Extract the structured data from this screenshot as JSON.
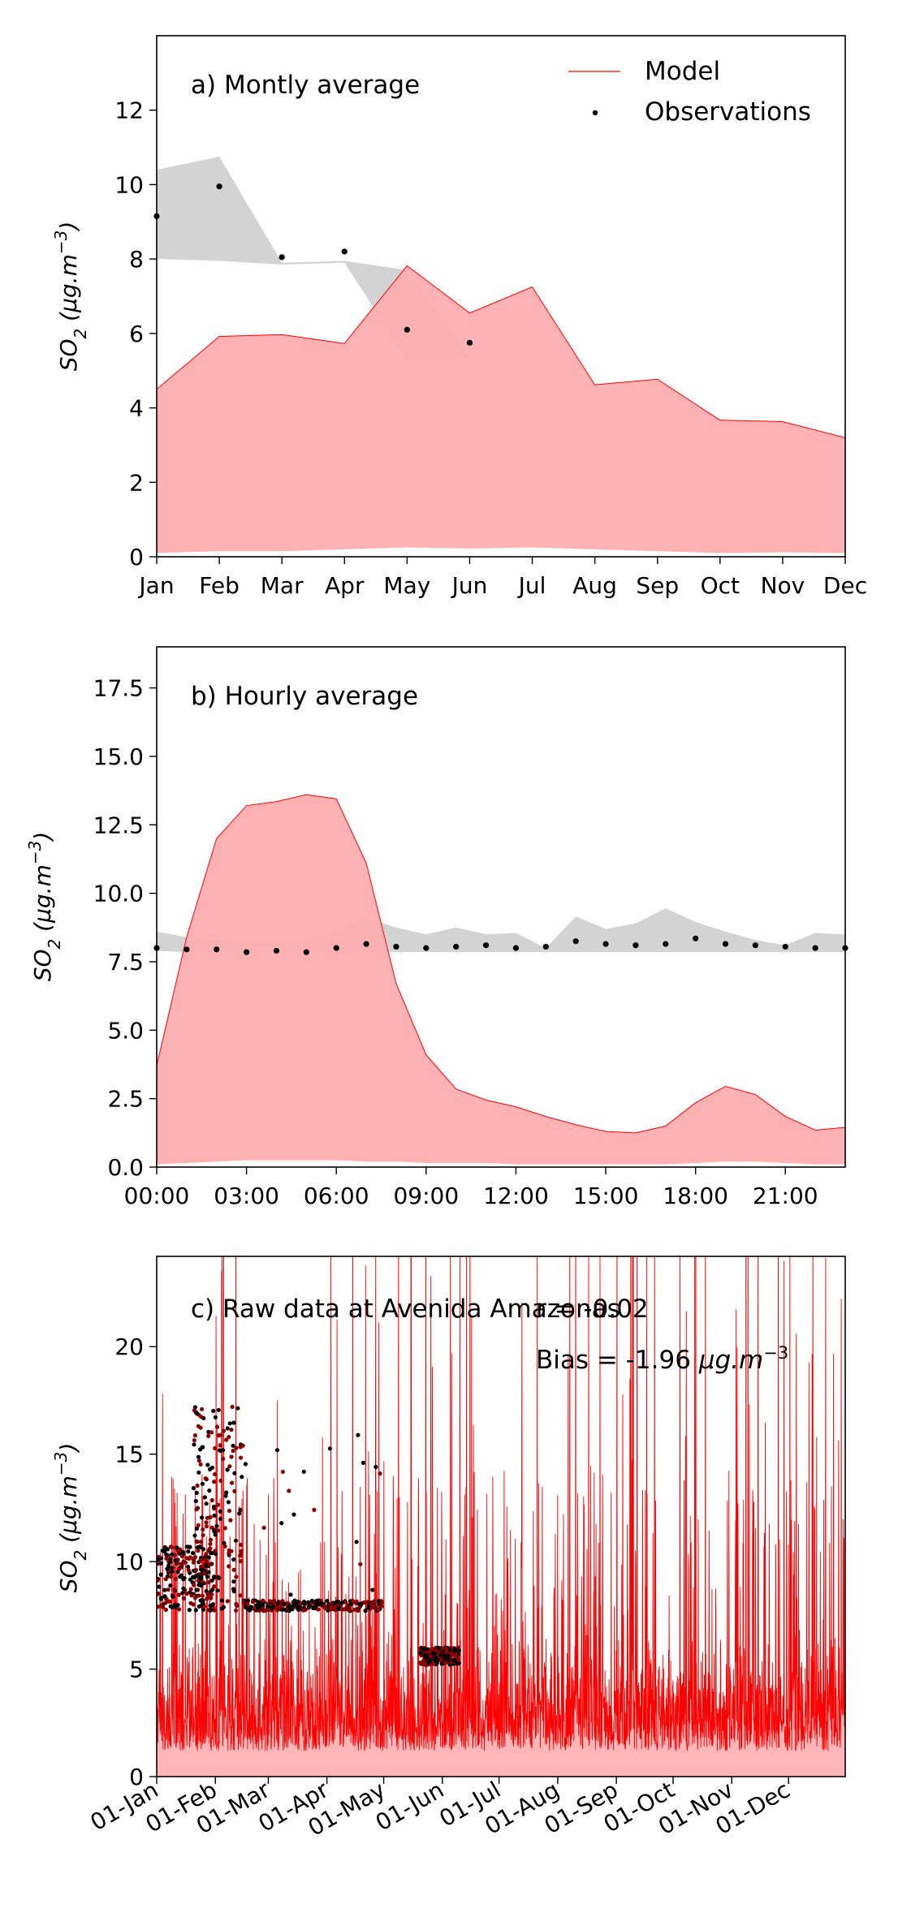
{
  "chart_data": [
    {
      "type": "area",
      "title": "a) Montly average",
      "ylabel_main": "SO",
      "ylabel_sub": "2",
      "ylabel_unit": "(μg.m",
      "ylabel_exp": "−3",
      "ylim": [
        0,
        14
      ],
      "yticks": [
        "0",
        "2",
        "4",
        "6",
        "8",
        "10",
        "12"
      ],
      "categories": [
        "Jan",
        "Feb",
        "Mar",
        "Apr",
        "May",
        "Jun",
        "Jul",
        "Aug",
        "Sep",
        "Oct",
        "Nov",
        "Dec"
      ],
      "legend": {
        "placement": "top-right",
        "model_label": "Model",
        "obs_label": "Observations"
      },
      "model": [
        4.5,
        5.92,
        5.97,
        5.73,
        7.82,
        6.55,
        7.25,
        4.62,
        4.77,
        3.67,
        3.63,
        3.2
      ],
      "model_min": [
        0.1,
        0.15,
        0.15,
        0.2,
        0.25,
        0.22,
        0.25,
        0.2,
        0.15,
        0.1,
        0.12,
        0.1
      ],
      "obs": [
        9.15,
        9.95,
        8.05,
        8.2,
        6.1,
        5.75,
        null,
        null,
        null,
        null,
        null,
        null
      ],
      "obs_upper": [
        10.4,
        10.75,
        7.9,
        7.95,
        7.7,
        5.35,
        null,
        null,
        null,
        null,
        null,
        null
      ],
      "obs_lower": [
        8.0,
        7.95,
        7.85,
        7.9,
        5.3,
        5.35,
        null,
        null,
        null,
        null,
        null,
        null
      ],
      "colors": {
        "model": "#ff0000",
        "model_fill": "#ffaeb0",
        "obs": "#000000",
        "obs_band": "#d3d3d3"
      }
    },
    {
      "type": "area",
      "title": "b) Hourly average",
      "ylabel_main": "SO",
      "ylabel_sub": "2",
      "ylabel_unit": "(μg.m",
      "ylabel_exp": "−3",
      "ylim": [
        0,
        19
      ],
      "yticks": [
        "0.0",
        "2.5",
        "5.0",
        "7.5",
        "10.0",
        "12.5",
        "15.0",
        "17.5"
      ],
      "xlim": [
        0,
        23
      ],
      "xticks": [
        "00:00",
        "03:00",
        "06:00",
        "09:00",
        "12:00",
        "15:00",
        "18:00",
        "21:00"
      ],
      "x": [
        0,
        1,
        2,
        3,
        4,
        5,
        6,
        7,
        8,
        9,
        10,
        11,
        12,
        13,
        14,
        15,
        16,
        17,
        18,
        19,
        20,
        21,
        22,
        23
      ],
      "model": [
        3.7,
        8.4,
        12.0,
        13.2,
        13.35,
        13.6,
        13.45,
        11.1,
        6.7,
        4.1,
        2.85,
        2.45,
        2.2,
        1.85,
        1.55,
        1.3,
        1.25,
        1.5,
        2.35,
        2.95,
        2.65,
        1.85,
        1.35,
        1.45
      ],
      "model_min": [
        0.1,
        0.15,
        0.2,
        0.25,
        0.25,
        0.25,
        0.25,
        0.2,
        0.2,
        0.15,
        0.15,
        0.15,
        0.1,
        0.1,
        0.1,
        0.1,
        0.1,
        0.1,
        0.15,
        0.2,
        0.2,
        0.15,
        0.1,
        0.1
      ],
      "obs": [
        8.0,
        7.95,
        7.95,
        7.85,
        7.9,
        7.85,
        8.0,
        8.15,
        8.05,
        8.0,
        8.05,
        8.1,
        8.0,
        8.05,
        8.25,
        8.15,
        8.1,
        8.15,
        8.35,
        8.15,
        8.1,
        8.05,
        8.0,
        8.0
      ],
      "obs_upper": [
        8.6,
        8.4,
        8.3,
        8.2,
        8.2,
        8.25,
        8.6,
        9.1,
        8.75,
        8.5,
        8.75,
        8.5,
        8.55,
        8.0,
        9.15,
        8.7,
        8.9,
        9.45,
        8.95,
        8.6,
        8.3,
        8.1,
        8.55,
        8.5
      ],
      "obs_lower": [
        7.9,
        7.85,
        7.85,
        7.85,
        7.85,
        7.85,
        7.85,
        7.85,
        7.85,
        7.85,
        7.85,
        7.85,
        7.85,
        7.85,
        7.85,
        7.85,
        7.85,
        7.85,
        7.85,
        7.85,
        7.85,
        7.85,
        7.85,
        7.85
      ],
      "colors": {
        "model": "#ff0000",
        "model_fill": "#ffaeb0",
        "obs": "#000000",
        "obs_band": "#d3d3d3"
      }
    },
    {
      "type": "line",
      "title": "c) Raw data at Avenida Amazonas",
      "r_text": "r = -0.02",
      "bias_prefix": "Bias = -1.96 ",
      "bias_unit": "μg.m",
      "bias_exp": "−3",
      "ylabel_main": "SO",
      "ylabel_sub": "2",
      "ylabel_unit": "(μg.m",
      "ylabel_exp": "−3",
      "ylim": [
        0,
        24.2
      ],
      "yticks": [
        "0",
        "5",
        "10",
        "15",
        "20"
      ],
      "xlim": [
        "2019-01-01",
        "2019-12-31"
      ],
      "xtick_dates": [
        "2019-01-01",
        "2019-02-01",
        "2019-03-01",
        "2019-04-01",
        "2019-05-01",
        "2019-06-01",
        "2019-07-01",
        "2019-08-01",
        "2019-09-01",
        "2019-10-01",
        "2019-11-01",
        "2019-12-01"
      ],
      "xticks": [
        "01-Jan",
        "01-Feb",
        "01-Mar",
        "01-Apr",
        "01-May",
        "01-Jun",
        "01-Jul",
        "01-Aug",
        "01-Sep",
        "01-Oct",
        "01-Nov",
        "01-Dec"
      ],
      "model_series": "hourly model values from 2019-01-01 to 2019-12-31, mostly 0–8, with frequent spikes above 20",
      "observation_clusters": [
        {
          "from": "2019-01-01",
          "to": "2019-01-31",
          "low": 7.7,
          "high": 10.7
        },
        {
          "from": "2019-01-20",
          "to": "2019-02-15",
          "low": 7.7,
          "high": 17.2
        },
        {
          "from": "2019-02-15",
          "to": "2019-04-30",
          "low": 7.7,
          "high": 8.2
        },
        {
          "from": "2019-05-20",
          "to": "2019-06-10",
          "low": 5.2,
          "high": 6.0
        }
      ],
      "colors": {
        "model": "#ff0000",
        "model_fill": "#ffaeb0",
        "obs": "#000000",
        "obs_alt": "#8b0000"
      }
    }
  ]
}
